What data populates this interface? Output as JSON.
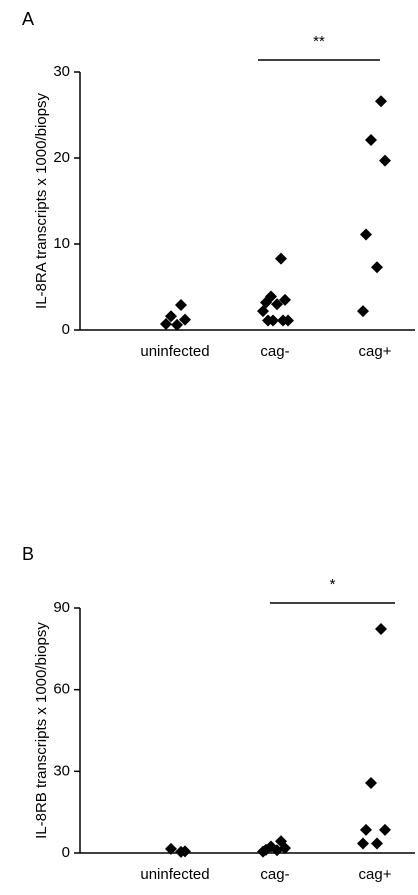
{
  "chart_data": [
    {
      "type": "scatter",
      "panel": "A",
      "ylabel": "IL-8RA transcripts x 1000/biopsy",
      "categories": [
        "uninfected",
        "cag-",
        "cag+"
      ],
      "values": [
        [
          2.9,
          1.6,
          1.2,
          0.7,
          0.6
        ],
        [
          8.3,
          3.9,
          3.5,
          3.2,
          3.0,
          2.2,
          1.1,
          1.1,
          1.1,
          1.1
        ],
        [
          26.6,
          22.1,
          19.7,
          11.1,
          7.3,
          2.2
        ]
      ],
      "color": "#000000",
      "ylim": [
        0,
        30
      ],
      "yticks": [
        0,
        10,
        20,
        30
      ],
      "annotation": "**"
    },
    {
      "type": "scatter",
      "panel": "B",
      "ylabel": "IL-8RB transcripts x 1000/biopsy",
      "categories": [
        "uninfected",
        "cag-",
        "cag+"
      ],
      "values": [
        [
          0.4,
          1.5,
          0.6
        ],
        [
          4.3,
          2.4,
          1.8,
          1.2,
          1.0,
          0.5
        ],
        [
          82.3,
          25.7,
          8.5,
          8.5,
          3.5,
          3.5
        ]
      ],
      "color": "#000000",
      "ylim": [
        0,
        90
      ],
      "yticks": [
        0,
        30,
        60,
        90
      ],
      "annotation": "*"
    }
  ]
}
